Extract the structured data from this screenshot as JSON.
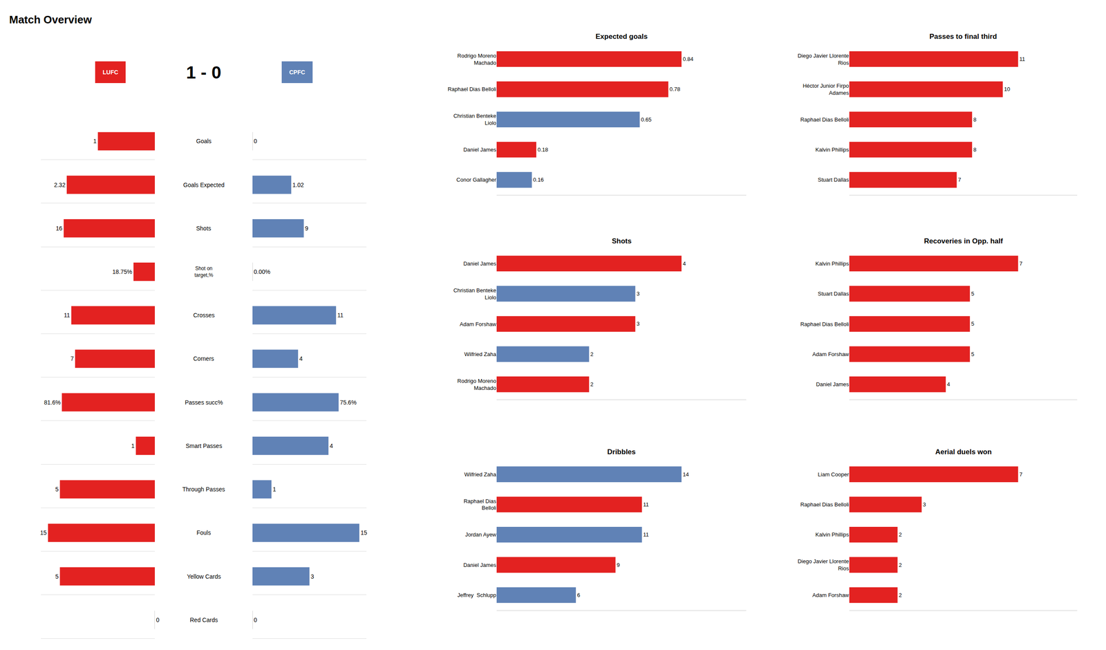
{
  "chart_data": [
    {
      "type": "bar",
      "orientation": "horizontal",
      "title": "Match Overview",
      "subtitle": "1 - 0",
      "categories": [
        "Goals",
        "Goals Expected",
        "Shots",
        "Shot on\ntarget,%",
        "Crosses",
        "Corners",
        "Passes succ%",
        "Smart Passes",
        "Through Passes",
        "Fouls",
        "Yellow Cards",
        "Red Cards"
      ],
      "series": [
        {
          "name": "LUFC",
          "color": "#E32221",
          "values": [
            1,
            2.32,
            16,
            18.75,
            11,
            7,
            81.6,
            1,
            5,
            15,
            5,
            0
          ],
          "value_labels": [
            "1",
            "2.32",
            "16",
            "18.75%",
            "11",
            "7",
            "81.6%",
            "1",
            "5",
            "15",
            "5",
            "0"
          ]
        },
        {
          "name": "CPFC",
          "color": "#6082B6",
          "values": [
            0,
            1.02,
            9,
            0.0,
            11,
            4,
            75.6,
            4,
            1,
            15,
            3,
            0
          ],
          "value_labels": [
            "0",
            "1.02",
            "9",
            "0.00%",
            "11",
            "4",
            "75.6%",
            "4",
            "1",
            "15",
            "3",
            "0"
          ]
        }
      ],
      "xlims": [
        [
          0,
          2
        ],
        [
          0,
          3
        ],
        [
          0,
          20
        ],
        [
          0,
          100
        ],
        [
          0,
          15
        ],
        [
          0,
          10
        ],
        [
          0,
          100
        ],
        [
          0,
          6
        ],
        [
          0,
          6
        ],
        [
          0,
          16
        ],
        [
          0,
          6
        ],
        [
          0,
          2
        ]
      ],
      "data_labels": true,
      "tick_labels": "y"
    },
    {
      "type": "bar",
      "orientation": "horizontal",
      "title": "Expected goals",
      "categories": [
        "Rodrigo Moreno\nMachado",
        "Raphael Dias Belloli",
        "Christian Benteke\nLiolo",
        "Daniel James",
        "Conor Gallagher"
      ],
      "values": [
        0.84,
        0.78,
        0.65,
        0.18,
        0.16
      ],
      "colors": [
        "#E32221",
        "#E32221",
        "#6082B6",
        "#E32221",
        "#6082B6"
      ],
      "xlim": [
        0,
        1.134
      ],
      "data_labels": true,
      "tick_labels": "y"
    },
    {
      "type": "bar",
      "orientation": "horizontal",
      "title": "Passes to final third",
      "categories": [
        "Diego Javier Llorente\nRios",
        "Héctor Junior Firpo\nAdames",
        "Raphael Dias Belloli",
        "Kalvin Phillips",
        "Stuart Dallas"
      ],
      "values": [
        11,
        10,
        8,
        8,
        7
      ],
      "colors": [
        "#E32221",
        "#E32221",
        "#E32221",
        "#E32221",
        "#E32221"
      ],
      "xlim": [
        0,
        14.85
      ],
      "data_labels": true,
      "tick_labels": "y"
    },
    {
      "type": "bar",
      "orientation": "horizontal",
      "title": "Shots",
      "categories": [
        "Daniel James",
        "Christian Benteke\nLiolo",
        "Adam Forshaw",
        "Wilfried Zaha",
        "Rodrigo Moreno\nMachado"
      ],
      "values": [
        4,
        3,
        3,
        2,
        2
      ],
      "colors": [
        "#E32221",
        "#6082B6",
        "#E32221",
        "#6082B6",
        "#E32221"
      ],
      "xlim": [
        0,
        5.4
      ],
      "data_labels": true,
      "tick_labels": "y"
    },
    {
      "type": "bar",
      "orientation": "horizontal",
      "title": "Recoveries in Opp. half",
      "categories": [
        "Kalvin Phillips",
        "Stuart Dallas",
        "Raphael Dias Belloli",
        "Adam Forshaw",
        "Daniel James"
      ],
      "values": [
        7,
        5,
        5,
        5,
        4
      ],
      "colors": [
        "#E32221",
        "#E32221",
        "#E32221",
        "#E32221",
        "#E32221"
      ],
      "xlim": [
        0,
        9.45
      ],
      "data_labels": true,
      "tick_labels": "y"
    },
    {
      "type": "bar",
      "orientation": "horizontal",
      "title": "Dribbles",
      "categories": [
        "Wilfried Zaha",
        "Raphael Dias\nBelloli",
        "Jordan Ayew",
        "Daniel James",
        "Jeffrey  Schlupp"
      ],
      "values": [
        14,
        11,
        11,
        9,
        6
      ],
      "colors": [
        "#6082B6",
        "#E32221",
        "#6082B6",
        "#E32221",
        "#6082B6"
      ],
      "xlim": [
        0,
        18.9
      ],
      "data_labels": true,
      "tick_labels": "y"
    },
    {
      "type": "bar",
      "orientation": "horizontal",
      "title": "Aerial duels won",
      "categories": [
        "Liam Cooper",
        "Raphael Dias Belloli",
        "Kalvin Phillips",
        "Diego Javier Llorente\nRios",
        "Adam Forshaw"
      ],
      "values": [
        7,
        3,
        2,
        2,
        2
      ],
      "colors": [
        "#E32221",
        "#E32221",
        "#E32221",
        "#E32221",
        "#E32221"
      ],
      "xlim": [
        0,
        9.45
      ],
      "data_labels": true,
      "tick_labels": "y"
    }
  ]
}
